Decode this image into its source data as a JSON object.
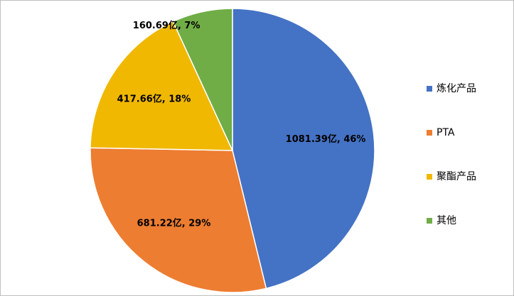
{
  "chart_data": {
    "type": "pie",
    "categories": [
      "炼化产品",
      "PTA",
      "聚酯产品",
      "其他"
    ],
    "values": [
      1081.39,
      681.22,
      417.66,
      160.69
    ],
    "value_labels": [
      "1081.39亿, 46%",
      "681.22亿, 29%",
      "417.66亿, 18%",
      "160.69亿, 7%"
    ],
    "colors": [
      "#4472c4",
      "#ed7d31",
      "#f0b800",
      "#70ad47"
    ],
    "legend": "right"
  }
}
